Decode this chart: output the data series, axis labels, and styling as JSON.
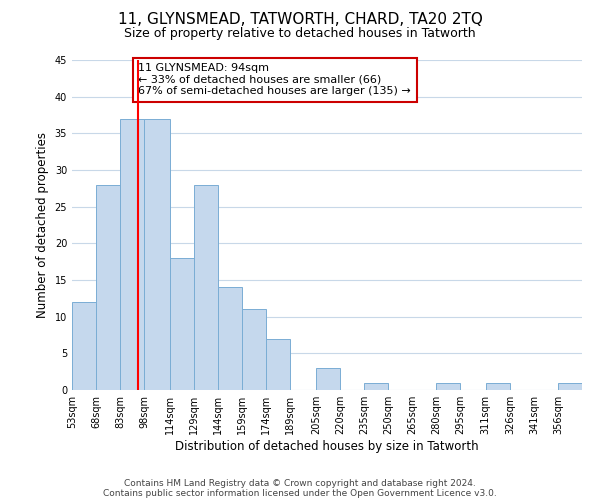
{
  "title": "11, GLYNSMEAD, TATWORTH, CHARD, TA20 2TQ",
  "subtitle": "Size of property relative to detached houses in Tatworth",
  "xlabel": "Distribution of detached houses by size in Tatworth",
  "ylabel": "Number of detached properties",
  "bar_labels": [
    "53sqm",
    "68sqm",
    "83sqm",
    "98sqm",
    "114sqm",
    "129sqm",
    "144sqm",
    "159sqm",
    "174sqm",
    "189sqm",
    "205sqm",
    "220sqm",
    "235sqm",
    "250sqm",
    "265sqm",
    "280sqm",
    "295sqm",
    "311sqm",
    "326sqm",
    "341sqm",
    "356sqm"
  ],
  "bar_values": [
    12,
    28,
    37,
    37,
    18,
    28,
    14,
    11,
    7,
    0,
    3,
    0,
    1,
    0,
    0,
    1,
    0,
    1,
    0,
    0,
    1
  ],
  "bar_color": "#c5d8ed",
  "bar_edge_color": "#7aadd4",
  "property_line_x": 94,
  "bin_edges": [
    53,
    68,
    83,
    98,
    114,
    129,
    144,
    159,
    174,
    189,
    205,
    220,
    235,
    250,
    265,
    280,
    295,
    311,
    326,
    341,
    356,
    371
  ],
  "ylim": [
    0,
    45
  ],
  "yticks": [
    0,
    5,
    10,
    15,
    20,
    25,
    30,
    35,
    40,
    45
  ],
  "annotation_text": "11 GLYNSMEAD: 94sqm\n← 33% of detached houses are smaller (66)\n67% of semi-detached houses are larger (135) →",
  "annotation_box_color": "#ffffff",
  "annotation_box_edge_color": "#cc0000",
  "footnote1": "Contains HM Land Registry data © Crown copyright and database right 2024.",
  "footnote2": "Contains public sector information licensed under the Open Government Licence v3.0.",
  "background_color": "#ffffff",
  "grid_color": "#c8d8e8",
  "title_fontsize": 11,
  "subtitle_fontsize": 9,
  "axis_label_fontsize": 8.5,
  "tick_fontsize": 7,
  "annotation_fontsize": 8,
  "footnote_fontsize": 6.5
}
